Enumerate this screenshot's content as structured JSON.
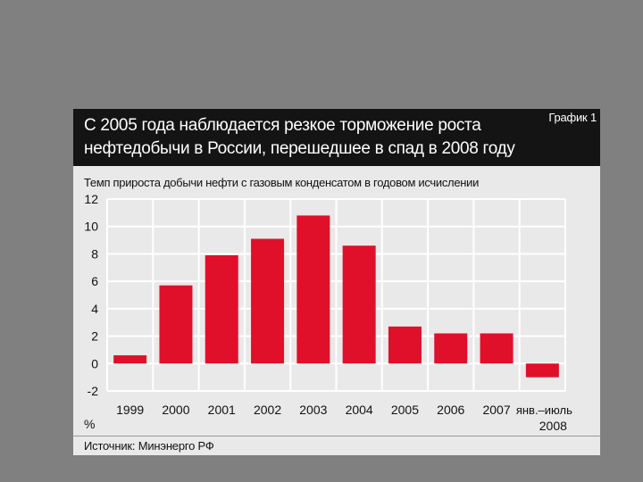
{
  "chart_data": {
    "type": "bar",
    "title": "С 2005 года наблюдается резкое торможение роста нефтедобычи в России, перешедшее в спад в 2008 году",
    "chart_number": "График 1",
    "subtitle": "Темп прироста добычи нефти с газовым конденсатом в годовом исчислении",
    "ylabel": "%",
    "source": "Источник: Минэнерго РФ",
    "categories": [
      "1999",
      "2000",
      "2001",
      "2002",
      "2003",
      "2004",
      "2005",
      "2006",
      "2007",
      "янв.–июль 2008"
    ],
    "values": [
      0.6,
      5.7,
      7.9,
      9.1,
      10.8,
      8.6,
      2.7,
      2.2,
      2.2,
      -1.0
    ],
    "ylim": [
      -2,
      12
    ],
    "yticks": [
      "12",
      "10",
      "8",
      "6",
      "4",
      "2",
      "0",
      "-2"
    ],
    "bar_color": "#e0102a",
    "grid": true
  }
}
